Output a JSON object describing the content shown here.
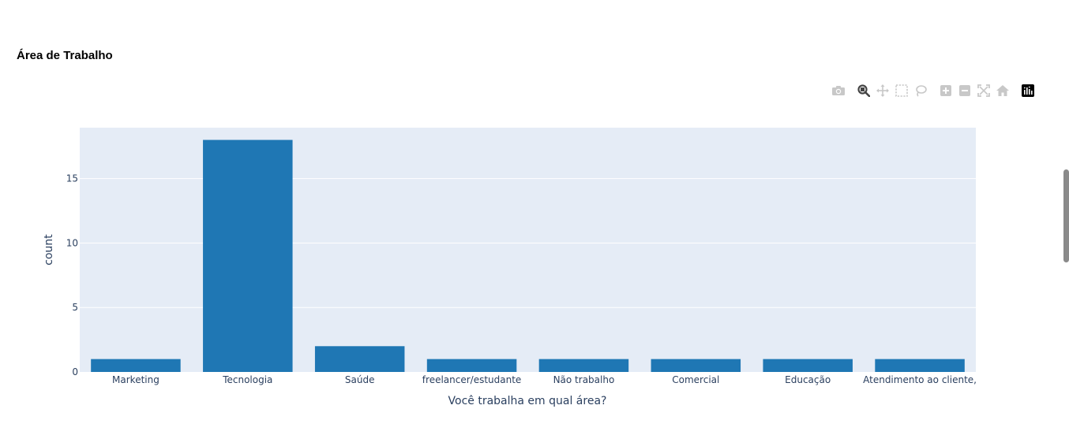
{
  "page": {
    "title": "Área de Trabalho"
  },
  "modebar": {
    "buttons": [
      {
        "icon": "camera-icon",
        "name": "download-plot-button"
      },
      {
        "icon": "zoom-icon",
        "name": "zoom-button"
      },
      {
        "icon": "pan-icon",
        "name": "pan-button"
      },
      {
        "icon": "box-select-icon",
        "name": "box-select-button"
      },
      {
        "icon": "lasso-icon",
        "name": "lasso-select-button"
      },
      {
        "icon": "zoom-in-icon",
        "name": "zoom-in-button"
      },
      {
        "icon": "zoom-out-icon",
        "name": "zoom-out-button"
      },
      {
        "icon": "autoscale-icon",
        "name": "autoscale-button"
      },
      {
        "icon": "home-icon",
        "name": "reset-axes-button"
      },
      {
        "icon": "plotly-logo-icon",
        "name": "plotly-logo-button"
      }
    ],
    "colors": {
      "inactive": "#c8c8c8",
      "active": "#444444",
      "logo_bg": "#000000"
    }
  },
  "chart_data": {
    "type": "bar",
    "categories": [
      "Marketing",
      "Tecnologia",
      "Saúde",
      "freelancer/estudante",
      "Não trabalho",
      "Comercial",
      "Educação",
      "Atendimento ao cliente,"
    ],
    "values": [
      1,
      18,
      2,
      1,
      1,
      1,
      1,
      1
    ],
    "xlabel": "Você trabalha em qual área?",
    "ylabel": "count",
    "ylim": [
      0,
      18.95
    ],
    "yticks": [
      0,
      5,
      10,
      15
    ],
    "grid": true,
    "colors": {
      "bar": "#1f77b4",
      "plot_bg": "#e5ecf6",
      "grid": "#ffffff",
      "text": "#2a3f5f"
    }
  }
}
